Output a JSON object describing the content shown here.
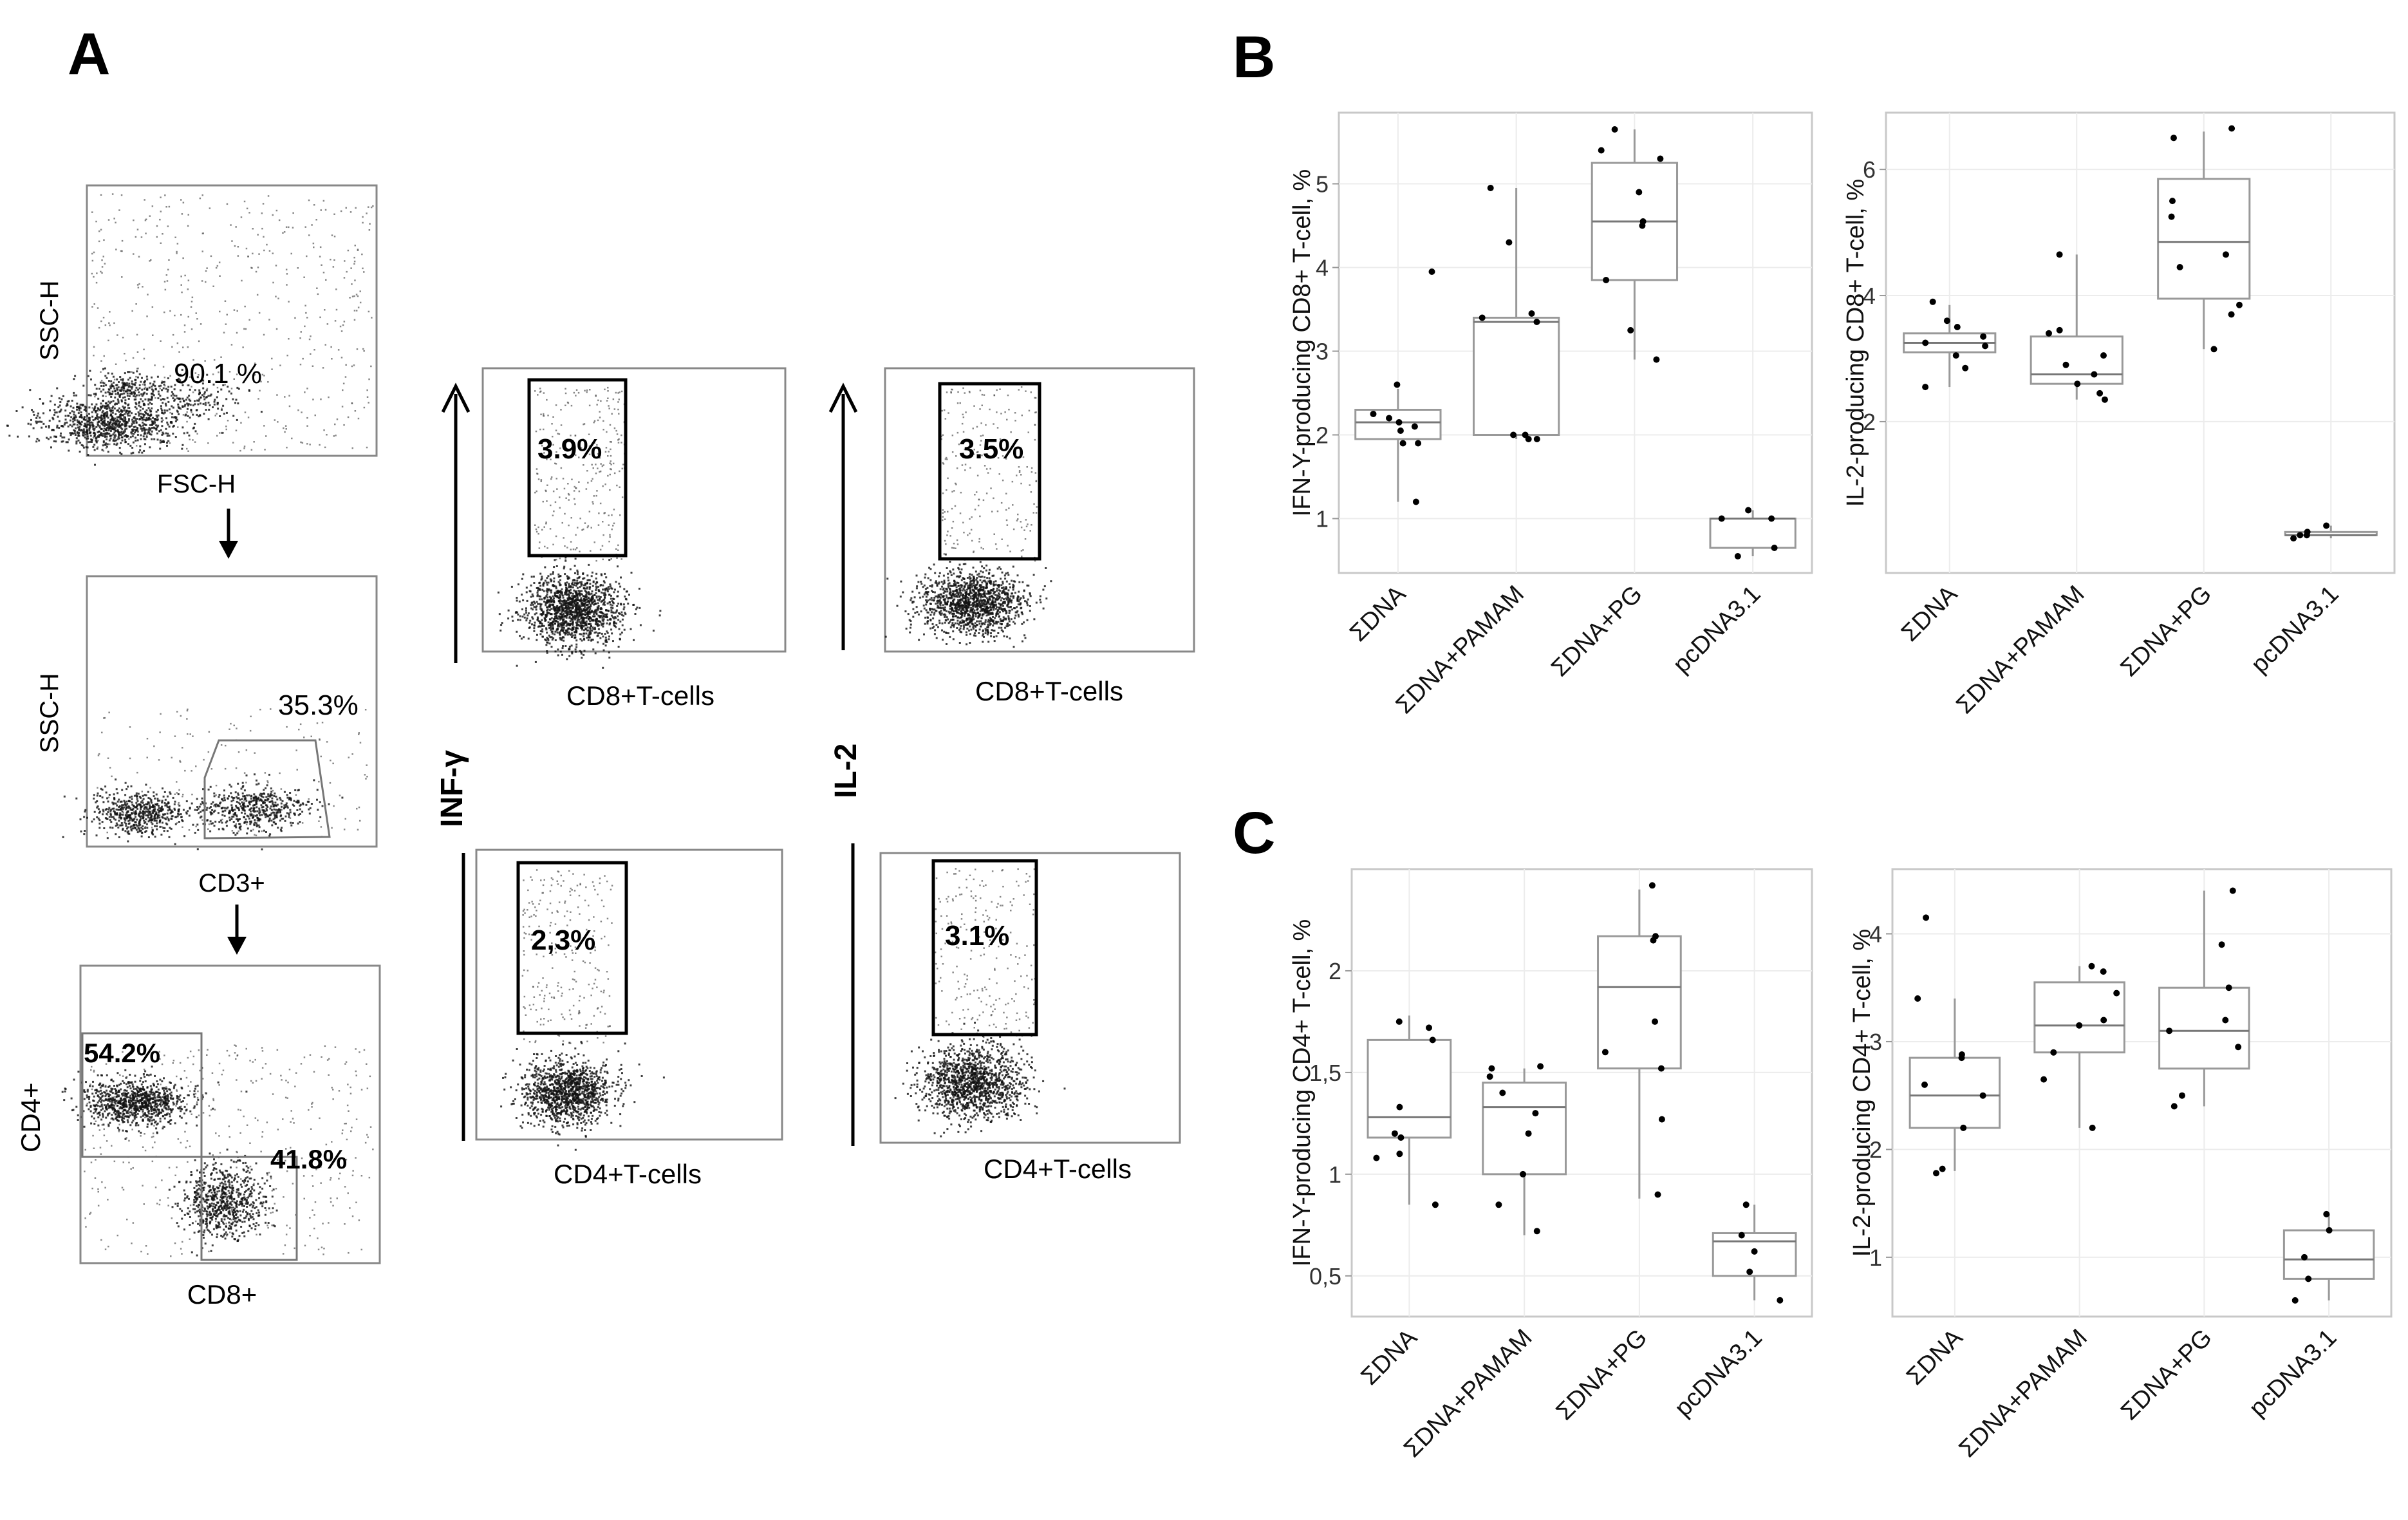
{
  "panels": {
    "A": "A",
    "B": "B",
    "C": "C"
  },
  "flow": {
    "plot1": {
      "ylabel": "SSC-H",
      "xlabel": "FSC-H",
      "gate": "90.1 %"
    },
    "plot2": {
      "ylabel": "SSC-H",
      "xlabel": "CD3+",
      "gate": "35.3%"
    },
    "plot3": {
      "ylabel": "CD4+",
      "xlabel": "CD8+",
      "gate_cd4": "54.2%",
      "gate_cd8": "41.8%"
    },
    "cytokine": {
      "infg_label": "INF-γ",
      "il2_label": "IL-2",
      "cd8_xlabel": "CD8+T-cells",
      "cd4_xlabel": "CD4+T-cells",
      "infg_cd8": "3.9%",
      "il2_cd8": "3.5%",
      "infg_cd4": "2,3%",
      "il2_cd4": "3.1%"
    }
  },
  "chart_data": [
    {
      "type": "box",
      "id": "B-left",
      "ylabel": "IFN-Y-producing  CD8+ T-cell, %",
      "categories": [
        "ΣDNA",
        "ΣDNA+PAMAM",
        "ΣDNA+PG",
        "pcDNA3.1"
      ],
      "ylim": [
        0.35,
        5.85
      ],
      "yticks": [
        1,
        2,
        3,
        4,
        5
      ],
      "ytick_labels": [
        "1",
        "2",
        "3",
        "4",
        "5"
      ],
      "boxes": [
        {
          "min": 1.2,
          "q1": 1.95,
          "median": 2.15,
          "q3": 2.3,
          "max": 2.55
        },
        {
          "min": 1.95,
          "q1": 2.0,
          "median": 3.35,
          "q3": 3.4,
          "max": 4.95
        },
        {
          "min": 2.9,
          "q1": 3.85,
          "median": 4.55,
          "q3": 5.25,
          "max": 5.65
        },
        {
          "min": 0.55,
          "q1": 0.65,
          "median": 1.0,
          "q3": 1.0,
          "max": 1.1
        }
      ],
      "points": [
        [
          1.2,
          1.9,
          1.9,
          2.05,
          2.1,
          2.15,
          2.2,
          2.25,
          2.6,
          3.95
        ],
        [
          1.95,
          1.95,
          2.0,
          2.0,
          3.35,
          3.4,
          3.45,
          4.3,
          4.95
        ],
        [
          2.9,
          3.25,
          3.85,
          4.5,
          4.55,
          4.9,
          5.3,
          5.4,
          5.65
        ],
        [
          0.55,
          0.65,
          1.0,
          1.0,
          1.1
        ]
      ]
    },
    {
      "type": "box",
      "id": "B-right",
      "ylabel": "IL-2-producing  CD8+ T-cell, %",
      "categories": [
        "ΣDNA",
        "ΣDNA+PAMAM",
        "ΣDNA+PG",
        "pcDNA3.1"
      ],
      "ylim": [
        -0.4,
        6.9
      ],
      "yticks": [
        2,
        4,
        6
      ],
      "ytick_labels": [
        "2",
        "4",
        "6"
      ],
      "boxes": [
        {
          "min": 2.55,
          "q1": 3.1,
          "median": 3.25,
          "q3": 3.4,
          "max": 3.85
        },
        {
          "min": 2.35,
          "q1": 2.6,
          "median": 2.75,
          "q3": 3.35,
          "max": 4.65
        },
        {
          "min": 3.15,
          "q1": 3.95,
          "median": 4.85,
          "q3": 5.85,
          "max": 6.6
        },
        {
          "min": 0.15,
          "q1": 0.2,
          "median": 0.2,
          "q3": 0.25,
          "max": 0.35
        }
      ],
      "points": [
        [
          2.55,
          2.85,
          3.05,
          3.2,
          3.25,
          3.35,
          3.5,
          3.6,
          3.9
        ],
        [
          2.35,
          2.45,
          2.6,
          2.75,
          2.9,
          3.05,
          3.4,
          3.45,
          4.65
        ],
        [
          3.15,
          3.7,
          3.85,
          4.45,
          4.65,
          5.25,
          5.5,
          6.5,
          6.65
        ],
        [
          0.15,
          0.2,
          0.2,
          0.25,
          0.35
        ]
      ]
    },
    {
      "type": "box",
      "id": "C-left",
      "ylabel": "IFN-Y-producing  CD4+ T-cell, %",
      "categories": [
        "ΣDNA",
        "ΣDNA+PAMAM",
        "ΣDNA+PG",
        "pcDNA3.1"
      ],
      "ylim": [
        0.3,
        2.5
      ],
      "yticks": [
        0.5,
        1,
        1.5,
        2
      ],
      "ytick_labels": [
        "0,5",
        "1",
        "1,5",
        "2"
      ],
      "boxes": [
        {
          "min": 0.85,
          "q1": 1.18,
          "median": 1.28,
          "q3": 1.66,
          "max": 1.78
        },
        {
          "min": 0.7,
          "q1": 1.0,
          "median": 1.33,
          "q3": 1.45,
          "max": 1.52
        },
        {
          "min": 0.88,
          "q1": 1.52,
          "median": 1.92,
          "q3": 2.17,
          "max": 2.4
        },
        {
          "min": 0.38,
          "q1": 0.5,
          "median": 0.67,
          "q3": 0.71,
          "max": 0.85
        }
      ],
      "points": [
        [
          0.85,
          1.08,
          1.1,
          1.18,
          1.2,
          1.33,
          1.66,
          1.72,
          1.75
        ],
        [
          0.72,
          0.85,
          1.0,
          1.2,
          1.3,
          1.4,
          1.48,
          1.52,
          1.53
        ],
        [
          0.9,
          1.27,
          1.52,
          1.6,
          1.75,
          2.15,
          2.17,
          2.42
        ],
        [
          0.38,
          0.52,
          0.62,
          0.7,
          0.85
        ]
      ]
    },
    {
      "type": "box",
      "id": "C-right",
      "ylabel": "IL-2-producing  CD4+ T-cell, %",
      "categories": [
        "ΣDNA",
        "ΣDNA+PAMAM",
        "ΣDNA+PG",
        "pcDNA3.1"
      ],
      "ylim": [
        0.45,
        4.6
      ],
      "yticks": [
        1,
        2,
        3,
        4
      ],
      "ytick_labels": [
        "1",
        "2",
        "3",
        "4"
      ],
      "boxes": [
        {
          "min": 1.8,
          "q1": 2.2,
          "median": 2.5,
          "q3": 2.85,
          "max": 3.4
        },
        {
          "min": 2.2,
          "q1": 2.9,
          "median": 3.15,
          "q3": 3.55,
          "max": 3.7
        },
        {
          "min": 2.4,
          "q1": 2.75,
          "median": 3.1,
          "q3": 3.5,
          "max": 4.4
        },
        {
          "min": 0.6,
          "q1": 0.8,
          "median": 0.98,
          "q3": 1.25,
          "max": 1.4
        }
      ],
      "points": [
        [
          1.78,
          1.82,
          2.2,
          2.5,
          2.6,
          2.85,
          2.88,
          3.4,
          4.15
        ],
        [
          2.2,
          2.65,
          2.9,
          3.15,
          3.2,
          3.45,
          3.65,
          3.7
        ],
        [
          2.4,
          2.5,
          2.95,
          3.1,
          3.2,
          3.5,
          3.9,
          4.4
        ],
        [
          0.6,
          0.8,
          1.0,
          1.25,
          1.4
        ]
      ]
    }
  ]
}
